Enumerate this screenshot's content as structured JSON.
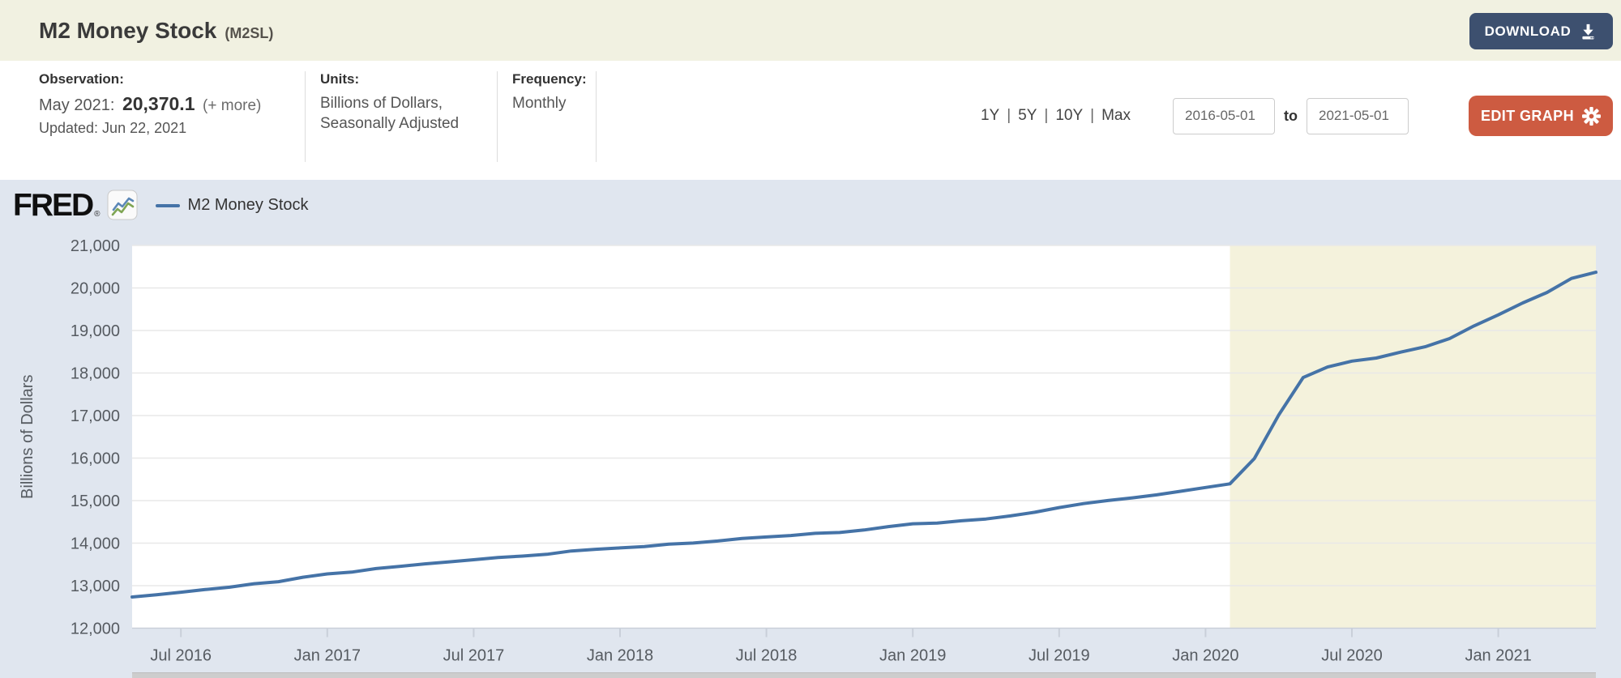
{
  "theme": {
    "--header-bg": "#f1f1e1",
    "--download-bg": "#3d506f",
    "--edit-bg": "#cd5b41",
    "--chart-bg": "#e0e6ef",
    "--line-color": "#4573a7"
  },
  "header": {
    "title": "M2 Money Stock",
    "series_id_label": "(M2SL)",
    "download_label": "DOWNLOAD"
  },
  "info_bar": {
    "observation": {
      "label": "Observation:",
      "date": "May 2021:",
      "value": "20,370.1",
      "more_label": "(+ more)",
      "updated": "Updated: Jun 22, 2021"
    },
    "units": {
      "label": "Units:",
      "line1": "Billions of Dollars,",
      "line2": "Seasonally Adjusted"
    },
    "frequency": {
      "label": "Frequency:",
      "value": "Monthly"
    }
  },
  "controls": {
    "range_links": [
      "1Y",
      "5Y",
      "10Y",
      "Max"
    ],
    "range_separator": "|",
    "date_from": "2016-05-01",
    "date_to_label": "to",
    "date_to": "2021-05-01",
    "edit_graph_label": "EDIT GRAPH"
  },
  "chart_header": {
    "logo_text": "FRED",
    "logo_reg": "®",
    "legend_label": "M2 Money Stock"
  },
  "chart_data": {
    "type": "line",
    "title": "M2 Money Stock",
    "ylabel": "Billions of Dollars",
    "units": "Billions of Dollars, Seasonally Adjusted",
    "frequency": "Monthly",
    "x_start": "2016-05",
    "x_end": "2021-05",
    "ylim": [
      12000,
      21000
    ],
    "grid": true,
    "legend_position": "top-left",
    "y_ticks": [
      12000,
      13000,
      14000,
      15000,
      16000,
      17000,
      18000,
      19000,
      20000,
      21000
    ],
    "y_tick_labels": [
      "12,000",
      "13,000",
      "14,000",
      "15,000",
      "16,000",
      "17,000",
      "18,000",
      "19,000",
      "20,000",
      "21,000"
    ],
    "x_ticks": [
      {
        "month_index": 2,
        "label": "Jul 2016"
      },
      {
        "month_index": 8,
        "label": "Jan 2017"
      },
      {
        "month_index": 14,
        "label": "Jul 2017"
      },
      {
        "month_index": 20,
        "label": "Jan 2018"
      },
      {
        "month_index": 26,
        "label": "Jul 2018"
      },
      {
        "month_index": 32,
        "label": "Jan 2019"
      },
      {
        "month_index": 38,
        "label": "Jul 2019"
      },
      {
        "month_index": 44,
        "label": "Jan 2020"
      },
      {
        "month_index": 50,
        "label": "Jul 2020"
      },
      {
        "month_index": 56,
        "label": "Jan 2021"
      }
    ],
    "recession_band": {
      "start_month_index": 45,
      "end_month_index": 60,
      "start_date": "2020-02",
      "end_date": "2021-05"
    },
    "colors": {
      "plot_bg": "#ffffff",
      "recession_band": "#f4f2dc",
      "gridline": "#e8e8e8",
      "axis_line": "#c9cfd9",
      "tick_text": "#565b61",
      "line": "#4573a7"
    },
    "series": [
      {
        "name": "M2 Money Stock",
        "color": "#4573a7",
        "dates": [
          "2016-05",
          "2016-06",
          "2016-07",
          "2016-08",
          "2016-09",
          "2016-10",
          "2016-11",
          "2016-12",
          "2017-01",
          "2017-02",
          "2017-03",
          "2017-04",
          "2017-05",
          "2017-06",
          "2017-07",
          "2017-08",
          "2017-09",
          "2017-10",
          "2017-11",
          "2017-12",
          "2018-01",
          "2018-02",
          "2018-03",
          "2018-04",
          "2018-05",
          "2018-06",
          "2018-07",
          "2018-08",
          "2018-09",
          "2018-10",
          "2018-11",
          "2018-12",
          "2019-01",
          "2019-02",
          "2019-03",
          "2019-04",
          "2019-05",
          "2019-06",
          "2019-07",
          "2019-08",
          "2019-09",
          "2019-10",
          "2019-11",
          "2019-12",
          "2020-01",
          "2020-02",
          "2020-03",
          "2020-04",
          "2020-05",
          "2020-06",
          "2020-07",
          "2020-08",
          "2020-09",
          "2020-10",
          "2020-11",
          "2020-12",
          "2021-01",
          "2021-02",
          "2021-03",
          "2021-04",
          "2021-05"
        ],
        "values": [
          12733,
          12785,
          12845,
          12909,
          12963,
          13045,
          13094,
          13198,
          13277,
          13318,
          13402,
          13456,
          13513,
          13560,
          13609,
          13662,
          13696,
          13738,
          13815,
          13855,
          13887,
          13920,
          13977,
          14002,
          14049,
          14111,
          14145,
          14180,
          14230,
          14250,
          14309,
          14388,
          14455,
          14472,
          14525,
          14568,
          14640,
          14725,
          14836,
          14929,
          15002,
          15064,
          15135,
          15221,
          15308,
          15395,
          15989,
          17014,
          17894,
          18140,
          18280,
          18353,
          18492,
          18617,
          18810,
          19107,
          19367,
          19648,
          19896,
          20225,
          20370.1
        ]
      }
    ]
  }
}
